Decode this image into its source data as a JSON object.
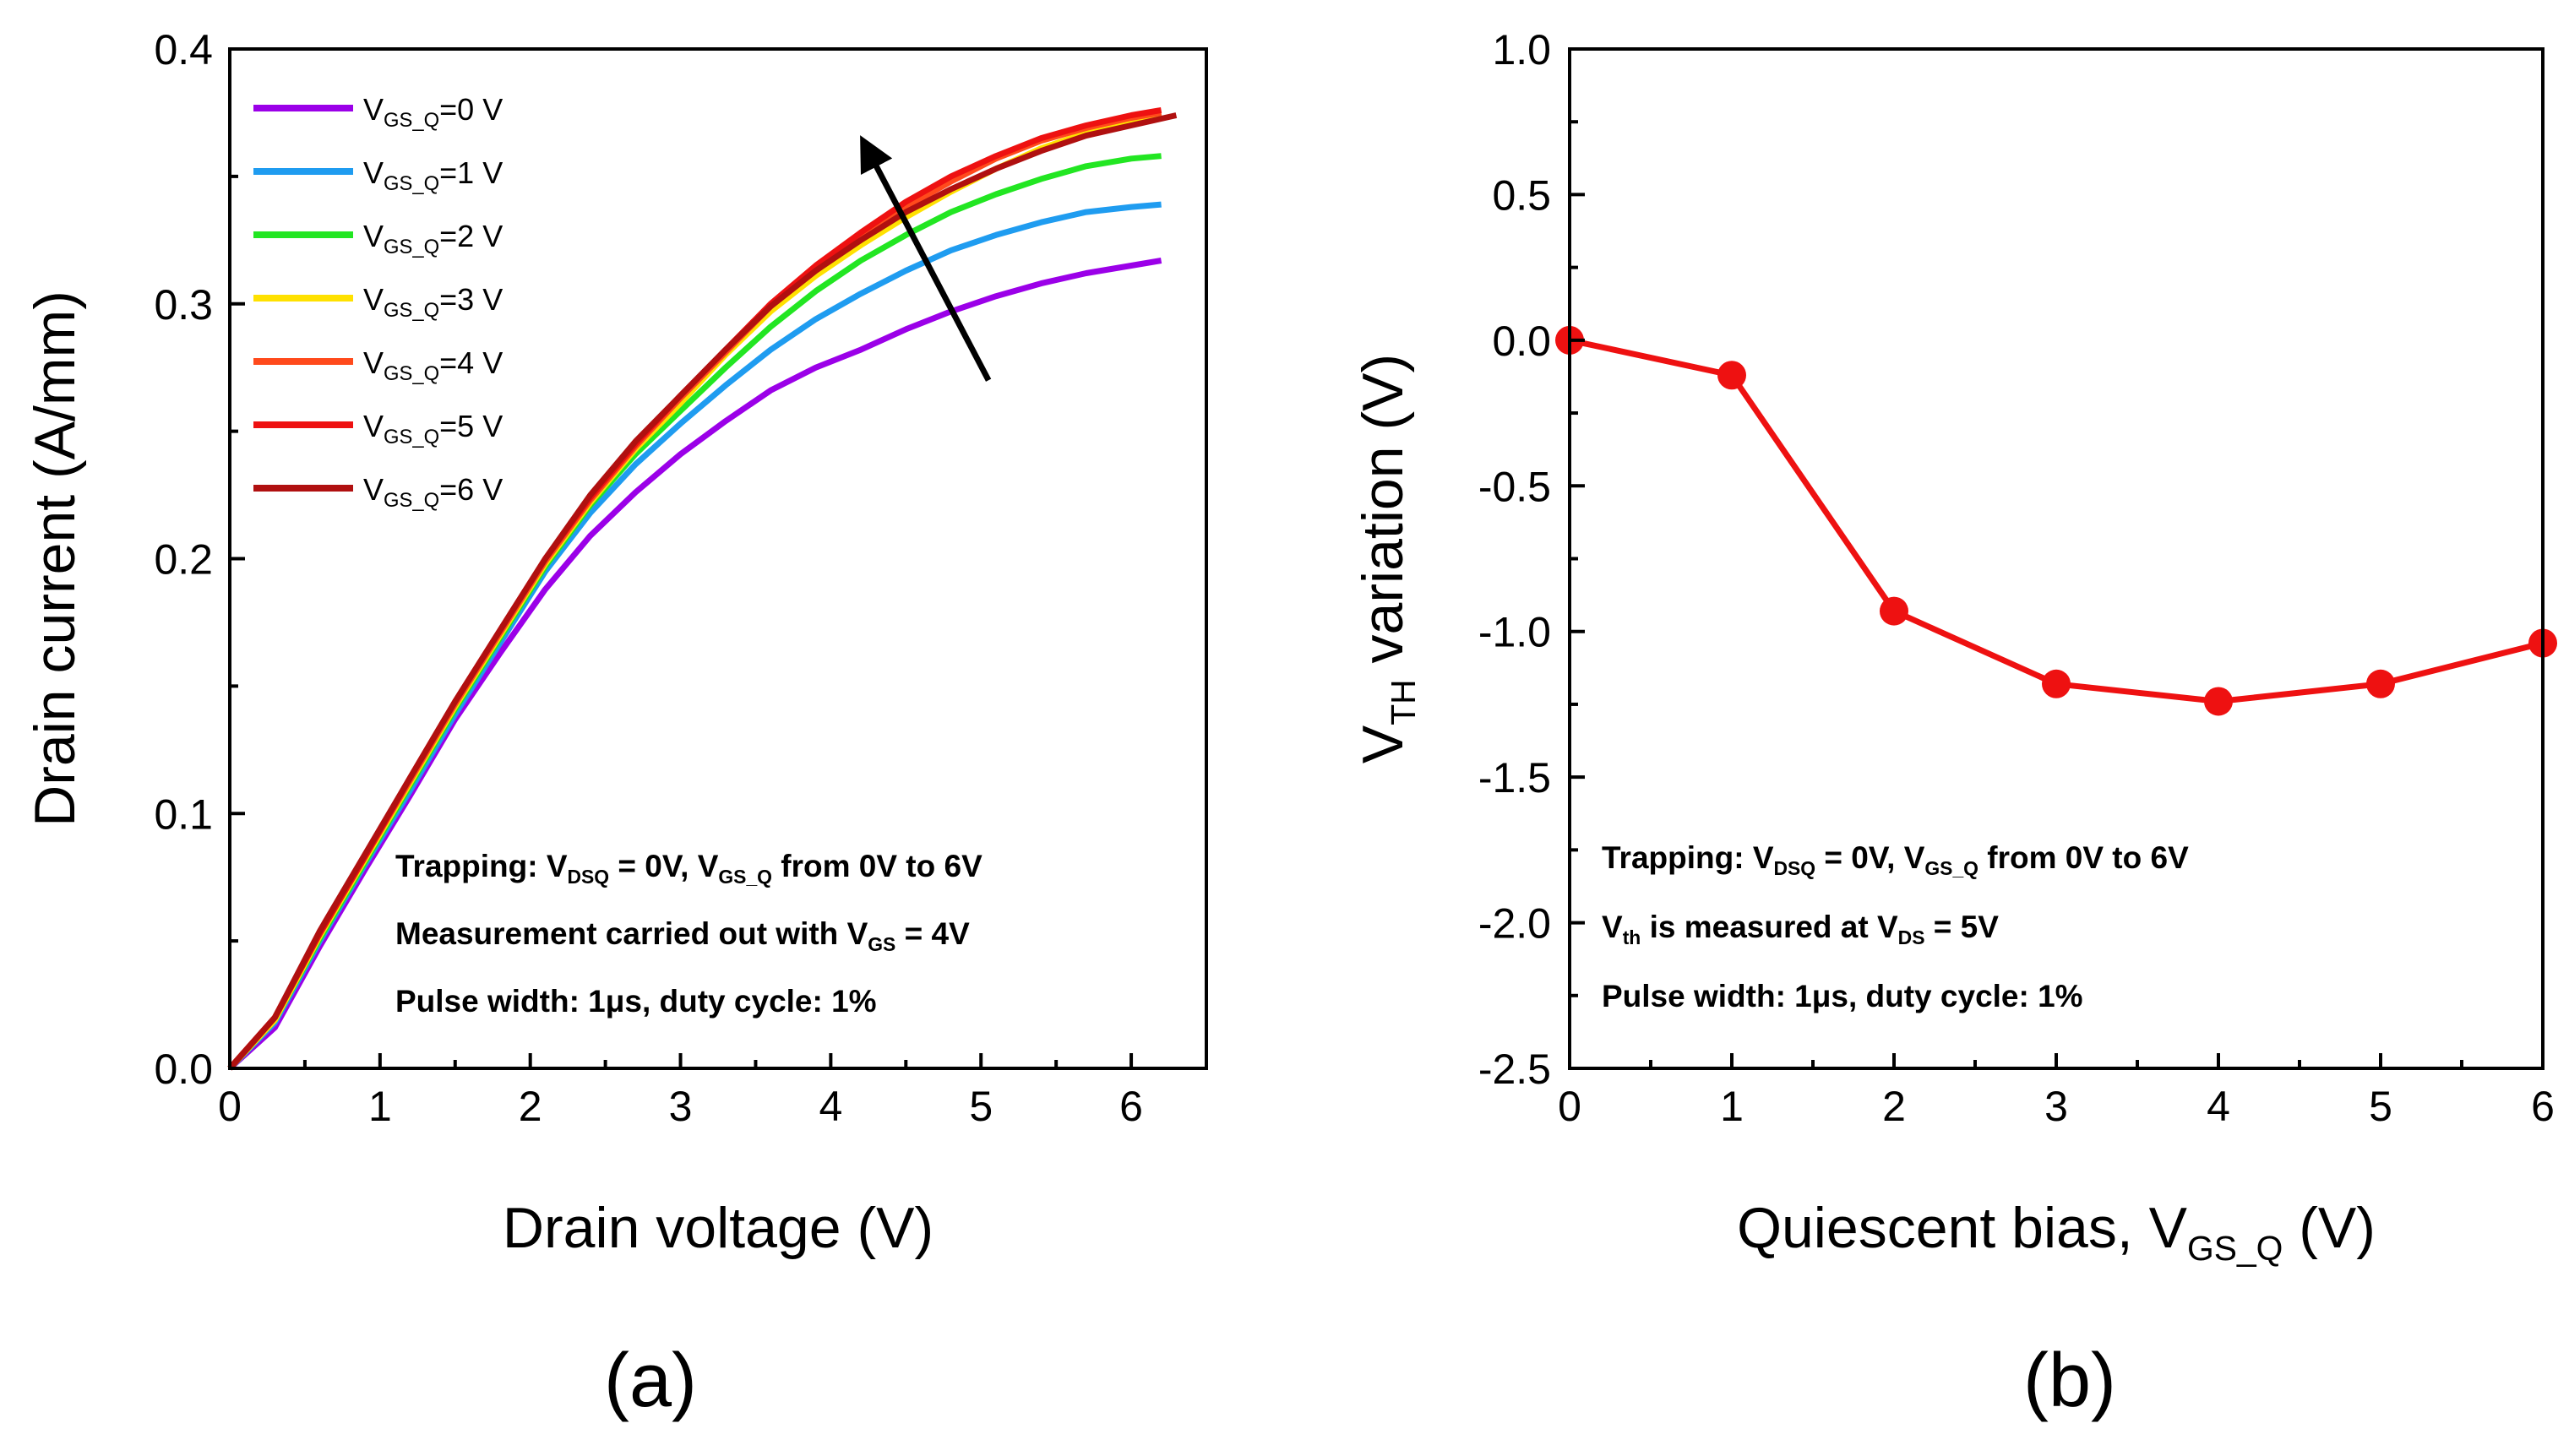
{
  "chart_data": [
    {
      "panel": "(a)",
      "type": "line",
      "xlabel": "Drain voltage (V)",
      "ylabel": "Drain current (A/mm)",
      "xlim": [
        0,
        6.5
      ],
      "ylim": [
        0,
        0.4
      ],
      "xticks": [
        "0",
        "1",
        "2",
        "3",
        "4",
        "5",
        "6"
      ],
      "yticks": [
        "0.0",
        "0.1",
        "0.2",
        "0.3",
        "0.4"
      ],
      "legend_position": "top-left",
      "series": [
        {
          "name": "V",
          "sub": "GS_Q",
          "suffix": "=0 V",
          "color": "#9b00e8",
          "x": [
            0,
            0.3,
            0.6,
            0.9,
            1.2,
            1.5,
            1.8,
            2.1,
            2.4,
            2.7,
            3.0,
            3.3,
            3.6,
            3.9,
            4.2,
            4.5,
            4.8,
            5.1,
            5.4,
            5.7,
            6.0,
            6.2
          ],
          "y": [
            0,
            0.016,
            0.048,
            0.078,
            0.107,
            0.137,
            0.163,
            0.188,
            0.209,
            0.226,
            0.241,
            0.254,
            0.266,
            0.275,
            0.282,
            0.29,
            0.297,
            0.303,
            0.308,
            0.312,
            0.315,
            0.317
          ]
        },
        {
          "name": "V",
          "sub": "GS_Q",
          "suffix": "=1 V",
          "color": "#1f9cf0",
          "x": [
            0,
            0.3,
            0.6,
            0.9,
            1.2,
            1.5,
            1.8,
            2.1,
            2.4,
            2.7,
            3.0,
            3.3,
            3.6,
            3.9,
            4.2,
            4.5,
            4.8,
            5.1,
            5.4,
            5.7,
            6.0,
            6.2
          ],
          "y": [
            0,
            0.018,
            0.05,
            0.08,
            0.109,
            0.139,
            0.167,
            0.195,
            0.218,
            0.237,
            0.253,
            0.268,
            0.282,
            0.294,
            0.304,
            0.313,
            0.321,
            0.327,
            0.332,
            0.336,
            0.338,
            0.339
          ]
        },
        {
          "name": "V",
          "sub": "GS_Q",
          "suffix": "=2 V",
          "color": "#22e622",
          "x": [
            0,
            0.3,
            0.6,
            0.9,
            1.2,
            1.5,
            1.8,
            2.1,
            2.4,
            2.7,
            3.0,
            3.3,
            3.6,
            3.9,
            4.2,
            4.5,
            4.8,
            5.1,
            5.4,
            5.7,
            6.0,
            6.2
          ],
          "y": [
            0,
            0.019,
            0.051,
            0.081,
            0.111,
            0.141,
            0.169,
            0.197,
            0.221,
            0.241,
            0.258,
            0.275,
            0.291,
            0.305,
            0.317,
            0.327,
            0.336,
            0.343,
            0.349,
            0.354,
            0.357,
            0.358
          ]
        },
        {
          "name": "V",
          "sub": "GS_Q",
          "suffix": "=3 V",
          "color": "#ffe100",
          "x": [
            0,
            0.3,
            0.6,
            0.9,
            1.2,
            1.5,
            1.8,
            2.1,
            2.4,
            2.7,
            3.0,
            3.3,
            3.6,
            3.9,
            4.2,
            4.5,
            4.8,
            5.1,
            5.4,
            5.7,
            6.0,
            6.2
          ],
          "y": [
            0,
            0.019,
            0.052,
            0.082,
            0.112,
            0.142,
            0.17,
            0.198,
            0.222,
            0.243,
            0.261,
            0.28,
            0.297,
            0.311,
            0.323,
            0.334,
            0.344,
            0.353,
            0.361,
            0.367,
            0.371,
            0.373
          ]
        },
        {
          "name": "V",
          "sub": "GS_Q",
          "suffix": "=4 V",
          "color": "#ff4a1c",
          "x": [
            0,
            0.3,
            0.6,
            0.9,
            1.2,
            1.5,
            1.8,
            2.1,
            2.4,
            2.7,
            3.0,
            3.3,
            3.6,
            3.9,
            4.2,
            4.5,
            4.8,
            5.1,
            5.4,
            5.7,
            6.0,
            6.2
          ],
          "y": [
            0,
            0.02,
            0.053,
            0.083,
            0.113,
            0.143,
            0.171,
            0.199,
            0.223,
            0.244,
            0.263,
            0.281,
            0.299,
            0.313,
            0.326,
            0.338,
            0.348,
            0.357,
            0.364,
            0.369,
            0.373,
            0.375
          ]
        },
        {
          "name": "V",
          "sub": "GS_Q",
          "suffix": "=5 V",
          "color": "#ee1111",
          "x": [
            0,
            0.3,
            0.6,
            0.9,
            1.2,
            1.5,
            1.8,
            2.1,
            2.4,
            2.7,
            3.0,
            3.3,
            3.6,
            3.9,
            4.2,
            4.5,
            4.8,
            5.1,
            5.4,
            5.7,
            6.0,
            6.2
          ],
          "y": [
            0,
            0.02,
            0.053,
            0.083,
            0.114,
            0.144,
            0.172,
            0.2,
            0.224,
            0.245,
            0.264,
            0.282,
            0.3,
            0.315,
            0.328,
            0.34,
            0.35,
            0.358,
            0.365,
            0.37,
            0.374,
            0.376
          ]
        },
        {
          "name": "V",
          "sub": "GS_Q",
          "suffix": "=6 V",
          "color": "#b01010",
          "x": [
            0,
            0.3,
            0.6,
            0.9,
            1.2,
            1.5,
            1.8,
            2.1,
            2.4,
            2.7,
            3.0,
            3.3,
            3.6,
            3.9,
            4.2,
            4.5,
            4.8,
            5.1,
            5.4,
            5.7,
            6.0,
            6.3
          ],
          "y": [
            0,
            0.02,
            0.054,
            0.084,
            0.114,
            0.144,
            0.172,
            0.2,
            0.225,
            0.246,
            0.264,
            0.282,
            0.299,
            0.313,
            0.325,
            0.336,
            0.345,
            0.353,
            0.36,
            0.366,
            0.37,
            0.374
          ]
        }
      ],
      "arrow": {
        "from": [
          5.05,
          0.27
        ],
        "to": [
          4.25,
          0.36
        ]
      },
      "annotations": [
        [
          {
            "t": "Trapping: V"
          },
          {
            "t": "DSQ",
            "sub": true
          },
          {
            "t": " = 0V, V"
          },
          {
            "t": "GS_Q",
            "sub": true
          },
          {
            "t": " from 0V to 6V"
          }
        ],
        [
          {
            "t": "Measurement carried out with V"
          },
          {
            "t": "GS",
            "sub": true
          },
          {
            "t": " = 4V"
          }
        ],
        [
          {
            "t": "Pulse width: 1μs, duty cycle: 1%"
          }
        ]
      ]
    },
    {
      "panel": "(b)",
      "type": "line",
      "xlabel_parts": [
        {
          "t": "Quiescent bias, V"
        },
        {
          "t": "GS_Q",
          "sub": true
        },
        {
          "t": " (V)"
        }
      ],
      "ylabel_parts": [
        {
          "t": "V"
        },
        {
          "t": "TH",
          "sub": true
        },
        {
          "t": " variation (V)"
        }
      ],
      "xlim": [
        0,
        6
      ],
      "ylim": [
        -2.5,
        1.0
      ],
      "xticks": [
        "0",
        "1",
        "2",
        "3",
        "4",
        "5",
        "6"
      ],
      "yticks": [
        "-2.5",
        "-2.0",
        "-1.5",
        "-1.0",
        "-0.5",
        "0.0",
        "0.5",
        "1.0"
      ],
      "color": "#ee1111",
      "x": [
        0,
        1,
        2,
        3,
        4,
        5,
        6
      ],
      "y": [
        0.0,
        -0.12,
        -0.93,
        -1.18,
        -1.24,
        -1.18,
        -1.04
      ],
      "annotations": [
        [
          {
            "t": "Trapping: V"
          },
          {
            "t": "DSQ",
            "sub": true
          },
          {
            "t": " = 0V, V"
          },
          {
            "t": "GS_Q",
            "sub": true
          },
          {
            "t": " from 0V to 6V"
          }
        ],
        [
          {
            "t": "V"
          },
          {
            "t": "th",
            "sub": true
          },
          {
            "t": " is measured at V"
          },
          {
            "t": "DS",
            "sub": true
          },
          {
            "t": " = 5V"
          }
        ],
        [
          {
            "t": "Pulse width: 1μs, duty cycle: 1%"
          }
        ]
      ]
    }
  ]
}
